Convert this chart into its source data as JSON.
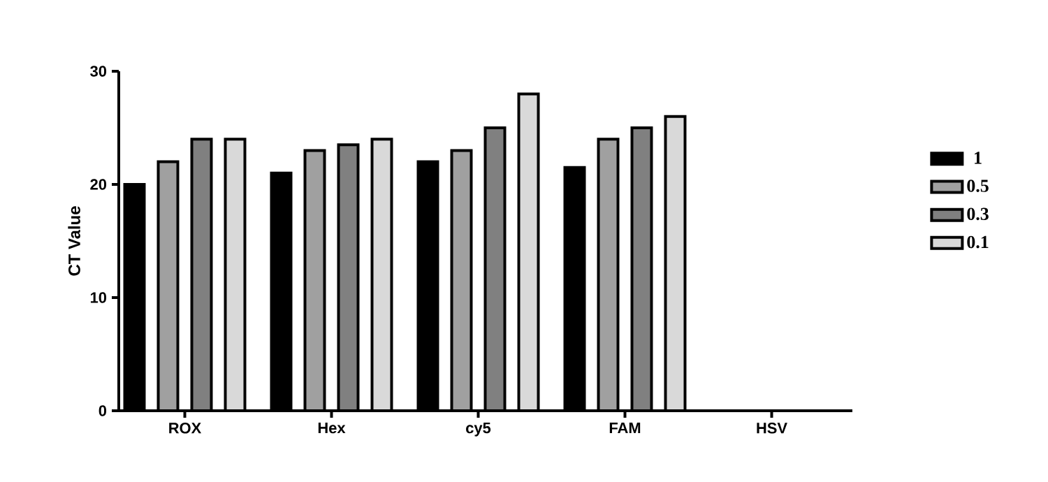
{
  "chart_data": {
    "type": "bar",
    "ylabel": "CT Value",
    "categories": [
      "ROX",
      "Hex",
      "cy5",
      "FAM",
      "HSV"
    ],
    "series": [
      {
        "name": "1",
        "color": "#000000",
        "values": [
          20,
          21,
          22,
          21.5,
          null
        ]
      },
      {
        "name": "0.5",
        "color": "#a0a0a0",
        "values": [
          22,
          23,
          23,
          24,
          null
        ]
      },
      {
        "name": "0.3",
        "color": "#808080",
        "values": [
          24,
          23.5,
          25,
          25,
          null
        ]
      },
      {
        "name": "0.1",
        "color": "#d9d9d9",
        "values": [
          24,
          24,
          28,
          26,
          null
        ]
      }
    ],
    "ylim": [
      0,
      30
    ],
    "yticks": [
      0,
      10,
      20,
      30
    ],
    "grid": false,
    "legend": "right"
  }
}
